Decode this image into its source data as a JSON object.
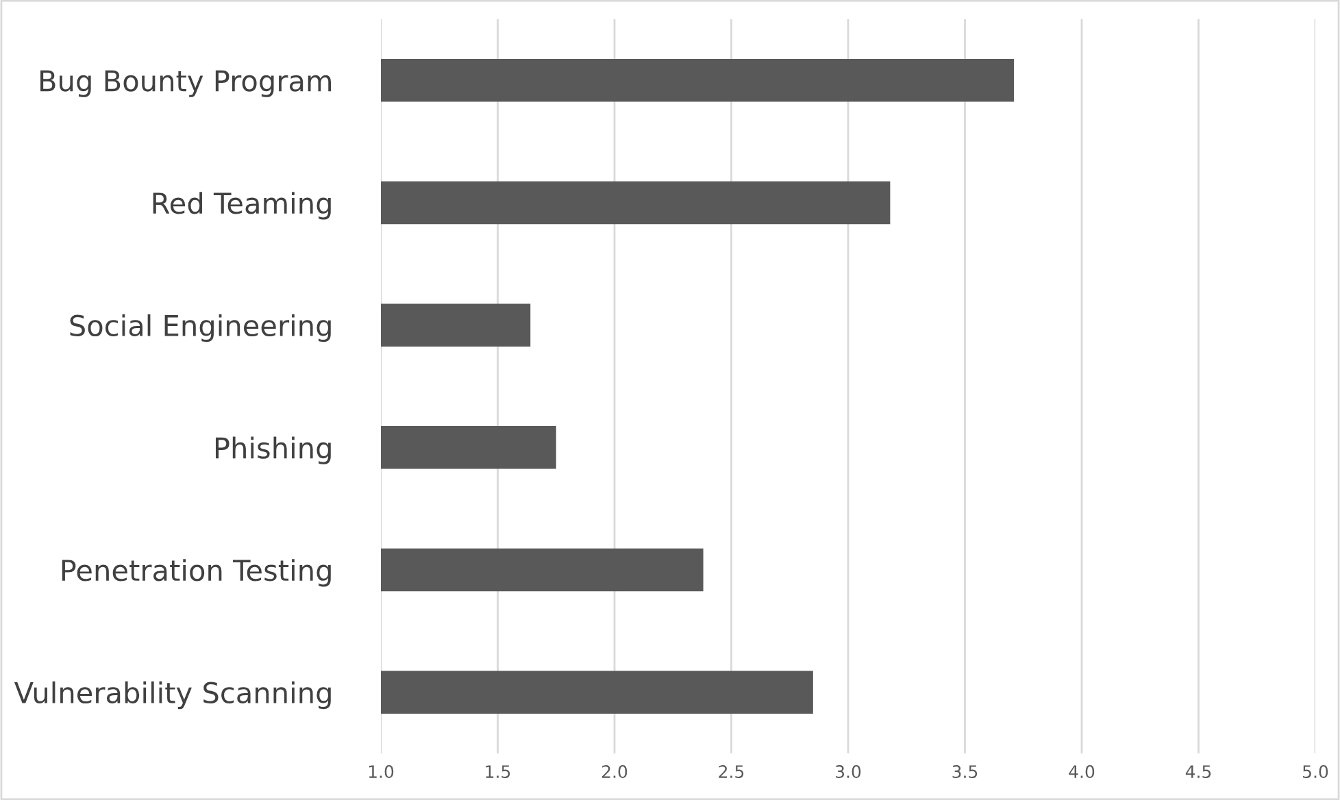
{
  "chart_data": {
    "type": "bar",
    "orientation": "horizontal",
    "categories": [
      "Bug Bounty Program",
      "Red Teaming",
      "Social Engineering",
      "Phishing",
      "Penetration Testing",
      "Vulnerability Scanning"
    ],
    "values": [
      3.71,
      3.18,
      1.64,
      1.75,
      2.38,
      2.85
    ],
    "color": "#595959",
    "xlim": [
      1.0,
      5.0
    ],
    "xticks": [
      {
        "value": 1.0,
        "label": "1.0"
      },
      {
        "value": 1.5,
        "label": "1.5"
      },
      {
        "value": 2.0,
        "label": "2.0"
      },
      {
        "value": 2.5,
        "label": "2.5"
      },
      {
        "value": 3.0,
        "label": "3.0"
      },
      {
        "value": 3.5,
        "label": "3.5"
      },
      {
        "value": 4.0,
        "label": "4.0"
      },
      {
        "value": 4.5,
        "label": "4.5"
      },
      {
        "value": 5.0,
        "label": "5.0"
      }
    ],
    "grid": "x",
    "legend": false
  }
}
